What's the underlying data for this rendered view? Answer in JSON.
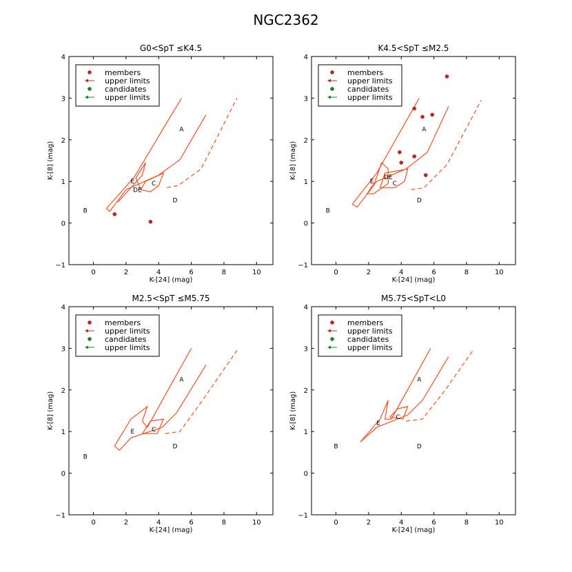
{
  "figure": {
    "title": "NGC2362"
  },
  "colors": {
    "model": "#ff4a1a",
    "members": "#d41f1f",
    "candidates": "#1a8a1a",
    "axis": "#000000"
  },
  "chart_data": [
    {
      "type": "scatter",
      "title": "G0<SpT ≤K4.5",
      "xlabel": "K-[24] (mag)",
      "ylabel": "K-[8] (mag)",
      "xlim": [
        -1.5,
        11
      ],
      "ylim": [
        -1,
        4
      ],
      "xticks": [
        "0",
        "2",
        "4",
        "6",
        "8",
        "10"
      ],
      "yticks": [
        "−1",
        "0",
        "1",
        "2",
        "3",
        "4"
      ],
      "legend": {
        "placement": "top-left",
        "entries": [
          "members",
          "upper limits",
          "candidates",
          "upper limits"
        ]
      },
      "regions": [
        {
          "label": "A",
          "x": 5.4,
          "y": 2.25
        },
        {
          "label": "B",
          "x": -0.5,
          "y": 0.3
        },
        {
          "label": "C",
          "x": 3.7,
          "y": 0.95
        },
        {
          "label": "D",
          "x": 5.0,
          "y": 0.55
        },
        {
          "label": "E",
          "x": 2.4,
          "y": 1.0
        },
        {
          "label": "DE",
          "x": 2.7,
          "y": 0.8
        }
      ],
      "series": [
        {
          "name": "members",
          "points": [
            [
              1.3,
              0.21
            ],
            [
              3.5,
              0.03
            ]
          ]
        }
      ],
      "model_solid": [
        [
          [
            0.8,
            0.35
          ],
          [
            1.0,
            0.28
          ],
          [
            2.0,
            0.8
          ],
          [
            4.0,
            1.15
          ],
          [
            5.3,
            1.52
          ],
          [
            6.9,
            2.6
          ]
        ],
        [
          [
            0.8,
            0.35
          ],
          [
            2.5,
            1.1
          ],
          [
            5.4,
            3.0
          ]
        ],
        [
          [
            1.5,
            0.5
          ],
          [
            3.0,
            1.15
          ],
          [
            3.2,
            1.45
          ],
          [
            2.6,
            1.08
          ],
          [
            2.9,
            0.8
          ]
        ],
        [
          [
            2.9,
            0.8
          ],
          [
            3.2,
            1.0
          ],
          [
            4.3,
            1.2
          ],
          [
            4.0,
            0.9
          ],
          [
            3.5,
            0.75
          ],
          [
            2.9,
            0.8
          ]
        ]
      ],
      "model_dashed": [
        [
          [
            4.5,
            0.85
          ],
          [
            5.2,
            0.9
          ],
          [
            6.6,
            1.3
          ],
          [
            8.8,
            3.0
          ]
        ]
      ]
    },
    {
      "type": "scatter",
      "title": "K4.5<SpT ≤M2.5",
      "xlabel": "K-[24] (mag)",
      "ylabel": "K-[8] (mag)",
      "xlim": [
        -1.5,
        11
      ],
      "ylim": [
        -1,
        4
      ],
      "xticks": [
        "0",
        "2",
        "4",
        "6",
        "8",
        "10"
      ],
      "yticks": [
        "−1",
        "0",
        "1",
        "2",
        "3",
        "4"
      ],
      "legend": {
        "placement": "top-left",
        "entries": [
          "members",
          "upper limits",
          "candidates",
          "upper limits"
        ]
      },
      "regions": [
        {
          "label": "A",
          "x": 5.4,
          "y": 2.25
        },
        {
          "label": "B",
          "x": -0.5,
          "y": 0.3
        },
        {
          "label": "C",
          "x": 3.6,
          "y": 0.95
        },
        {
          "label": "D",
          "x": 5.1,
          "y": 0.55
        },
        {
          "label": "E",
          "x": 2.2,
          "y": 1.0
        },
        {
          "label": "DE",
          "x": 3.2,
          "y": 1.1
        }
      ],
      "series": [
        {
          "name": "members",
          "points": [
            [
              6.8,
              3.52
            ],
            [
              4.8,
              2.75
            ],
            [
              5.3,
              2.55
            ],
            [
              5.9,
              2.6
            ],
            [
              3.9,
              1.7
            ],
            [
              4.8,
              1.6
            ],
            [
              4.0,
              1.45
            ],
            [
              5.5,
              1.15
            ]
          ]
        }
      ],
      "model_solid": [
        [
          [
            1.0,
            0.45
          ],
          [
            1.3,
            0.38
          ],
          [
            2.5,
            1.0
          ],
          [
            4.3,
            1.3
          ],
          [
            5.6,
            1.7
          ],
          [
            6.9,
            2.8
          ]
        ],
        [
          [
            1.0,
            0.45
          ],
          [
            2.5,
            1.2
          ],
          [
            5.1,
            3.0
          ]
        ],
        [
          [
            1.9,
            0.7
          ],
          [
            2.3,
            0.7
          ],
          [
            3.2,
            0.95
          ],
          [
            3.2,
            1.3
          ],
          [
            2.8,
            1.45
          ],
          [
            2.4,
            1.0
          ],
          [
            1.9,
            0.7
          ]
        ],
        [
          [
            2.7,
            0.85
          ],
          [
            3.0,
            1.2
          ],
          [
            4.4,
            1.3
          ],
          [
            4.2,
            1.0
          ],
          [
            3.6,
            0.85
          ],
          [
            2.7,
            0.85
          ]
        ]
      ],
      "model_dashed": [
        [
          [
            4.6,
            0.8
          ],
          [
            5.4,
            0.85
          ],
          [
            6.8,
            1.4
          ],
          [
            8.9,
            2.95
          ]
        ]
      ]
    },
    {
      "type": "scatter",
      "title": "M2.5<SpT ≤M5.75",
      "xlabel": "K-[24] (mag)",
      "ylabel": "K-[8] (mag)",
      "xlim": [
        -1.5,
        11
      ],
      "ylim": [
        -1,
        4
      ],
      "xticks": [
        "0",
        "2",
        "4",
        "6",
        "8",
        "10"
      ],
      "yticks": [
        "−1",
        "0",
        "1",
        "2",
        "3",
        "4"
      ],
      "legend": {
        "placement": "top-left",
        "entries": [
          "members",
          "upper limits",
          "candidates",
          "upper limits"
        ]
      },
      "regions": [
        {
          "label": "A",
          "x": 5.4,
          "y": 2.25
        },
        {
          "label": "B",
          "x": -0.5,
          "y": 0.4
        },
        {
          "label": "C",
          "x": 3.7,
          "y": 1.05
        },
        {
          "label": "D",
          "x": 5.0,
          "y": 0.65
        },
        {
          "label": "E",
          "x": 2.4,
          "y": 1.0
        }
      ],
      "series": [],
      "model_solid": [
        [
          [
            1.3,
            0.65
          ],
          [
            1.6,
            0.55
          ],
          [
            2.3,
            0.85
          ],
          [
            4.2,
            1.1
          ],
          [
            5.1,
            1.45
          ],
          [
            6.9,
            2.6
          ]
        ],
        [
          [
            1.3,
            0.65
          ],
          [
            2.3,
            1.3
          ],
          [
            3.3,
            1.6
          ],
          [
            3.0,
            1.25
          ],
          [
            3.3,
            1.1
          ],
          [
            6.0,
            3.0
          ]
        ],
        [
          [
            3.0,
            0.95
          ],
          [
            3.5,
            1.25
          ],
          [
            4.3,
            1.3
          ],
          [
            3.9,
            0.95
          ],
          [
            3.0,
            0.95
          ]
        ]
      ],
      "model_dashed": [
        [
          [
            4.4,
            0.95
          ],
          [
            5.3,
            1.0
          ],
          [
            6.6,
            1.7
          ],
          [
            8.8,
            2.95
          ]
        ]
      ]
    },
    {
      "type": "scatter",
      "title": "M5.75<SpT<L0",
      "xlabel": "K-[24] (mag)",
      "ylabel": "K-[8] (mag)",
      "xlim": [
        -1.5,
        11
      ],
      "ylim": [
        -1,
        4
      ],
      "xticks": [
        "0",
        "2",
        "4",
        "6",
        "8",
        "10"
      ],
      "yticks": [
        "−1",
        "0",
        "1",
        "2",
        "3",
        "4"
      ],
      "legend": {
        "placement": "top-left",
        "entries": [
          "members",
          "upper limits",
          "candidates",
          "upper limits"
        ]
      },
      "regions": [
        {
          "label": "A",
          "x": 5.1,
          "y": 2.25
        },
        {
          "label": "B",
          "x": 0.0,
          "y": 0.65
        },
        {
          "label": "C",
          "x": 3.8,
          "y": 1.35
        },
        {
          "label": "D",
          "x": 5.1,
          "y": 0.65
        },
        {
          "label": "E",
          "x": 2.6,
          "y": 1.2
        }
      ],
      "series": [],
      "model_solid": [
        [
          [
            1.5,
            0.75
          ],
          [
            2.5,
            1.1
          ],
          [
            4.4,
            1.4
          ],
          [
            5.3,
            1.75
          ],
          [
            6.9,
            2.8
          ]
        ],
        [
          [
            1.5,
            0.75
          ],
          [
            2.7,
            1.3
          ],
          [
            3.2,
            1.75
          ],
          [
            3.0,
            1.3
          ],
          [
            3.4,
            1.3
          ],
          [
            5.8,
            3.0
          ]
        ],
        [
          [
            3.3,
            1.35
          ],
          [
            3.8,
            1.55
          ],
          [
            4.4,
            1.6
          ],
          [
            4.1,
            1.3
          ],
          [
            3.3,
            1.35
          ]
        ]
      ],
      "model_dashed": [
        [
          [
            4.3,
            1.25
          ],
          [
            5.3,
            1.3
          ],
          [
            6.7,
            2.0
          ],
          [
            8.4,
            2.95
          ]
        ]
      ]
    }
  ]
}
